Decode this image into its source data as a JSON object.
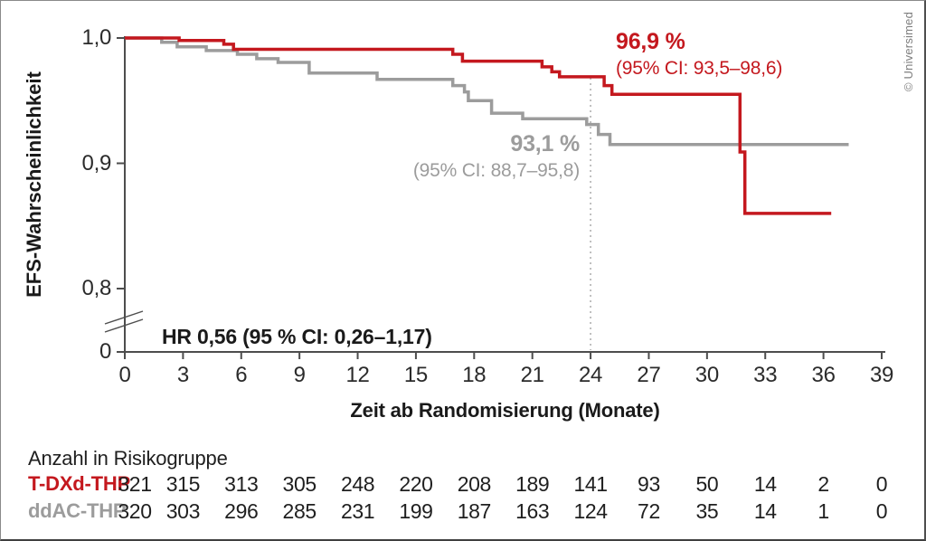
{
  "page": {
    "copyright": "© Universimed"
  },
  "chart_data": {
    "type": "line",
    "subtype": "kaplan-meier-step",
    "title": "",
    "xlabel": "Zeit ab Randomisierung (Monate)",
    "ylabel": "EFS-Wahrscheinlichkeit",
    "xlim": [
      0,
      39
    ],
    "ylim_visible": [
      0.8,
      1.0
    ],
    "axis_break": true,
    "grid": false,
    "x_ticks": [
      0,
      3,
      6,
      9,
      12,
      15,
      18,
      21,
      24,
      27,
      30,
      33,
      36,
      39
    ],
    "y_ticks": [
      {
        "label": "1,0",
        "value": 100
      },
      {
        "label": "0,9",
        "value": 90
      },
      {
        "label": "0,8",
        "value": 80
      },
      {
        "label": "0",
        "value": 0,
        "at_axis_zero": true
      }
    ],
    "reference_line_x": 24,
    "annotation_hr": "HR 0,56 (95 % CI: 0,26–1,17)",
    "series": [
      {
        "name": "T-DXd-THP",
        "color": "#c4181e",
        "landmark_label": "96,9 %",
        "ci_label": "(95% CI: 93,5–98,6)",
        "steps_percent": [
          [
            0,
            100
          ],
          [
            2.8,
            100
          ],
          [
            2.8,
            99.8
          ],
          [
            5.1,
            99.8
          ],
          [
            5.1,
            99.5
          ],
          [
            5.6,
            99.5
          ],
          [
            5.6,
            99.1
          ],
          [
            16.9,
            99.1
          ],
          [
            16.9,
            98.7
          ],
          [
            17.4,
            98.7
          ],
          [
            17.4,
            98.15
          ],
          [
            21.5,
            98.15
          ],
          [
            21.5,
            97.7
          ],
          [
            22.0,
            97.7
          ],
          [
            22.0,
            97.3
          ],
          [
            22.4,
            97.3
          ],
          [
            22.4,
            96.9
          ],
          [
            24.7,
            96.9
          ],
          [
            24.7,
            96.2
          ],
          [
            25.1,
            96.2
          ],
          [
            25.1,
            95.5
          ],
          [
            31.7,
            95.5
          ],
          [
            31.7,
            90.9
          ],
          [
            31.95,
            90.9
          ],
          [
            31.95,
            86.0
          ],
          [
            36.4,
            86.0
          ]
        ]
      },
      {
        "name": "ddAC-THP",
        "color": "#9c9c9c",
        "landmark_label": "93,1 %",
        "ci_label": "(95% CI: 88,7–95,8)",
        "steps_percent": [
          [
            0,
            100
          ],
          [
            1.9,
            100
          ],
          [
            1.9,
            99.65
          ],
          [
            2.7,
            99.65
          ],
          [
            2.7,
            99.3
          ],
          [
            4.2,
            99.3
          ],
          [
            4.2,
            99.0
          ],
          [
            5.8,
            99.0
          ],
          [
            5.8,
            98.7
          ],
          [
            6.8,
            98.7
          ],
          [
            6.8,
            98.35
          ],
          [
            7.9,
            98.35
          ],
          [
            7.9,
            98.05
          ],
          [
            9.5,
            98.05
          ],
          [
            9.5,
            97.2
          ],
          [
            13.0,
            97.2
          ],
          [
            13.0,
            96.7
          ],
          [
            16.9,
            96.7
          ],
          [
            16.9,
            96.2
          ],
          [
            17.5,
            96.2
          ],
          [
            17.5,
            95.7
          ],
          [
            17.7,
            95.7
          ],
          [
            17.7,
            95.0
          ],
          [
            18.9,
            95.0
          ],
          [
            18.9,
            94.0
          ],
          [
            20.5,
            94.0
          ],
          [
            20.5,
            93.55
          ],
          [
            23.8,
            93.55
          ],
          [
            23.8,
            93.1
          ],
          [
            24.4,
            93.1
          ],
          [
            24.4,
            92.3
          ],
          [
            25.0,
            92.3
          ],
          [
            25.0,
            91.5
          ],
          [
            37.3,
            91.5
          ]
        ]
      }
    ],
    "risk_table": {
      "title": "Anzahl in Risikogruppe",
      "columns_months": [
        0,
        3,
        6,
        9,
        12,
        15,
        18,
        21,
        24,
        27,
        30,
        33,
        36,
        39
      ],
      "rows": [
        {
          "label": "T-DXd-THP",
          "color": "#c4181e",
          "values": [
            321,
            315,
            313,
            305,
            248,
            220,
            208,
            189,
            141,
            93,
            50,
            14,
            2,
            0
          ]
        },
        {
          "label": "ddAC-THP",
          "color": "#9c9c9c",
          "values": [
            320,
            303,
            296,
            285,
            231,
            199,
            187,
            163,
            124,
            72,
            35,
            14,
            1,
            0
          ]
        }
      ]
    },
    "style": {
      "axis_color": "#4d4d4d",
      "ref_line_color": "#b0b0b0",
      "curve_width": 3.5
    }
  }
}
